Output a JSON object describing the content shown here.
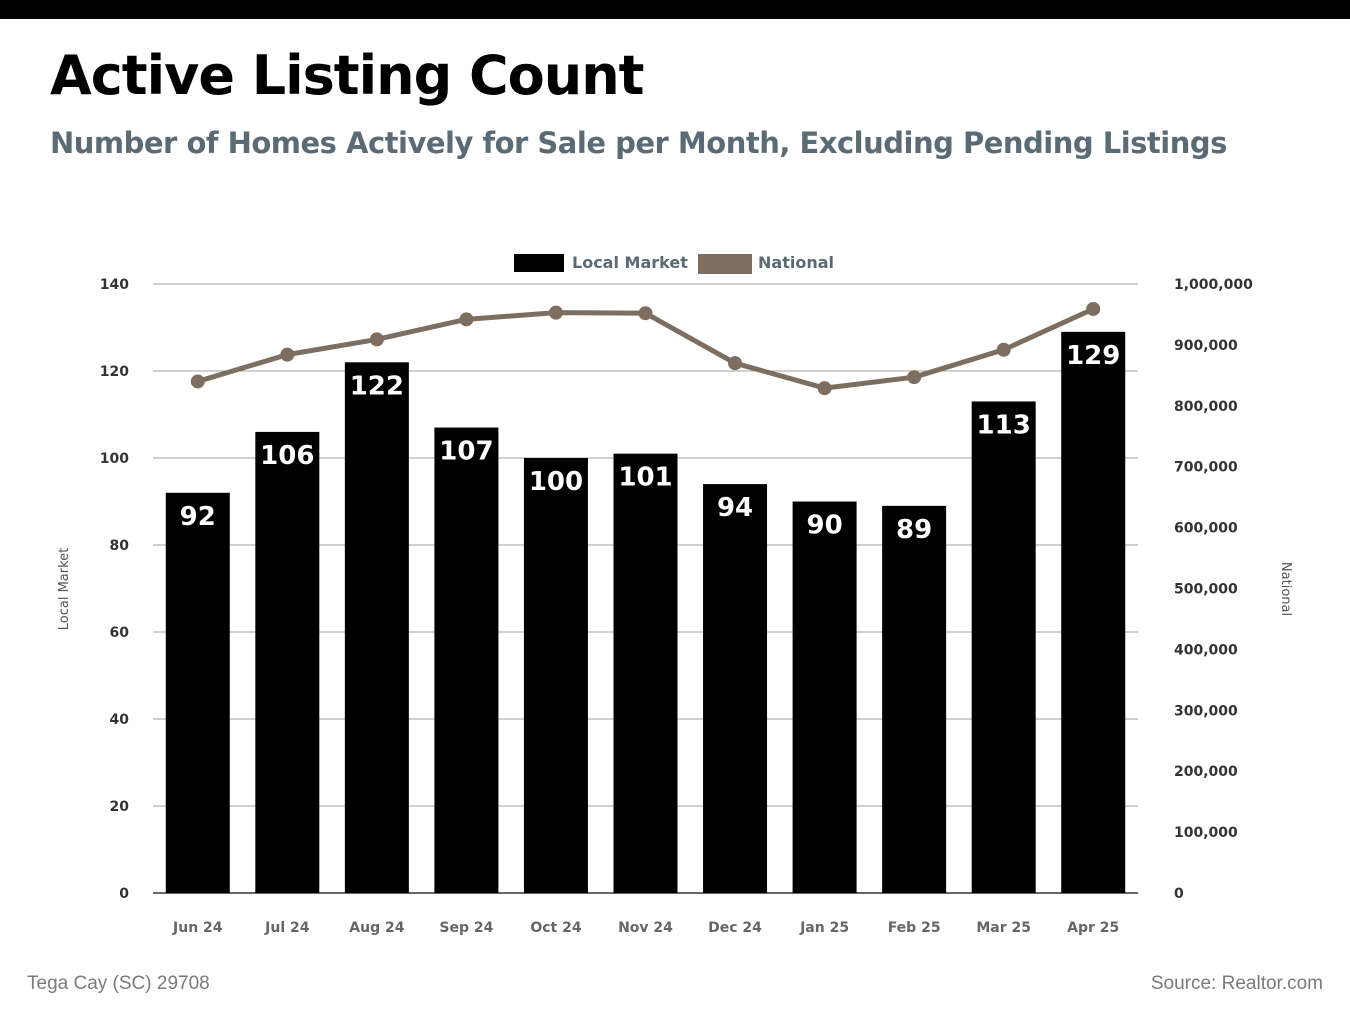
{
  "title": "Active Listing Count",
  "subtitle": "Number of Homes Actively for Sale per Month, Excluding Pending Listings",
  "footer": {
    "location": "Tega Cay (SC) 29708",
    "source": "Source: Realtor.com"
  },
  "colors": {
    "local": "#000000",
    "national": "#7d6e60",
    "subtitle": "#5a6b75",
    "grid": "#a0a0a0"
  },
  "chart_data": {
    "type": "bar",
    "categories": [
      "Jun 24",
      "Jul 24",
      "Aug 24",
      "Sep 24",
      "Oct 24",
      "Nov 24",
      "Dec 24",
      "Jan 25",
      "Feb 25",
      "Mar 25",
      "Apr 25"
    ],
    "series": [
      {
        "name": "Local Market",
        "type": "bar",
        "axis": "left",
        "values": [
          92,
          106,
          122,
          107,
          100,
          101,
          94,
          90,
          89,
          113,
          129
        ]
      },
      {
        "name": "National",
        "type": "line",
        "axis": "right",
        "values": [
          840000,
          884000,
          909000,
          942000,
          953000,
          952000,
          870000,
          829000,
          847000,
          892000,
          959000
        ]
      }
    ],
    "ylabel": "Local Market",
    "y2label": "National",
    "ylim": [
      0,
      140
    ],
    "y2lim": [
      0,
      1000000
    ],
    "yticks": [
      "0",
      "20",
      "40",
      "60",
      "80",
      "100",
      "120",
      "140"
    ],
    "y2ticks": [
      "0",
      "100,000",
      "200,000",
      "300,000",
      "400,000",
      "500,000",
      "600,000",
      "700,000",
      "800,000",
      "900,000",
      "1,000,000"
    ],
    "legend_position": "top-center",
    "grid": true
  }
}
